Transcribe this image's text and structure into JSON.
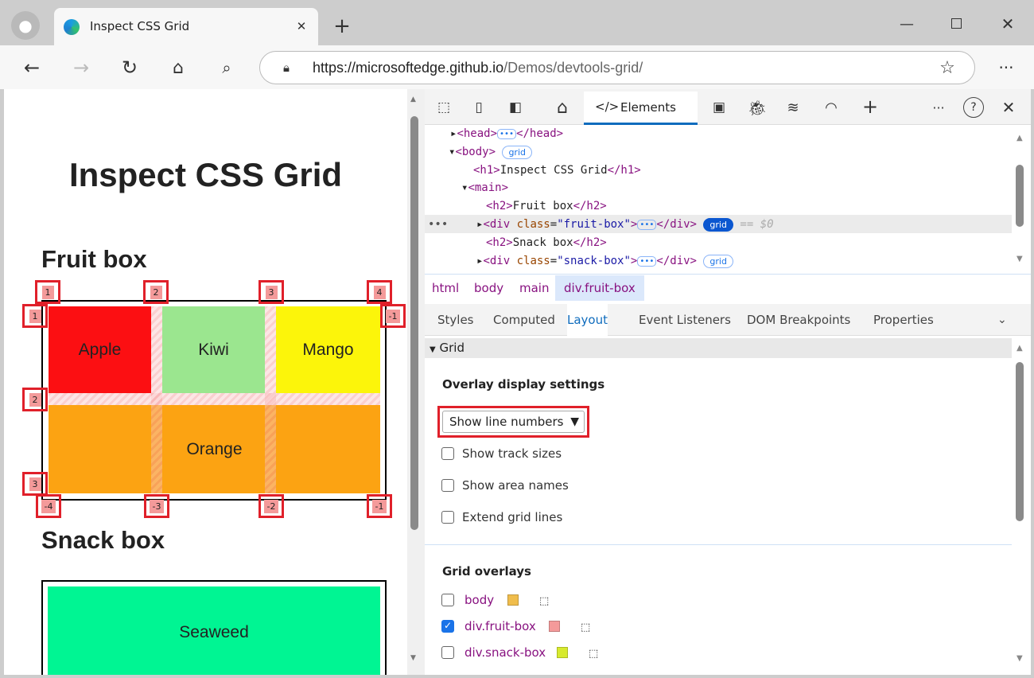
{
  "browser": {
    "tab_title": "Inspect CSS Grid",
    "url_host": "https://microsoftedge.github.io",
    "url_path": "/Demos/devtools-grid/",
    "new_tab": "+",
    "close_tab": "✕"
  },
  "page": {
    "h1": "Inspect CSS Grid",
    "fruit_heading": "Fruit box",
    "snack_heading": "Snack box",
    "fruit_cells": [
      "Apple",
      "Kiwi",
      "Mango",
      "Orange"
    ],
    "fruit_colors": [
      "#fc0f12",
      "#9be68f",
      "#fcf50a",
      "#fca312"
    ],
    "snack_cells": [
      "Seaweed"
    ],
    "snack_color": "#00f593",
    "line_numbers": {
      "top": [
        "1",
        "2",
        "3",
        "4"
      ],
      "left": [
        "1",
        "2",
        "3"
      ],
      "right": [
        "-1"
      ],
      "bottom": [
        "-4",
        "-3",
        "-2",
        "-1"
      ]
    }
  },
  "devtools": {
    "elements_tab": "Elements",
    "dom": {
      "head_open": "<head>",
      "head_close": "</head>",
      "body_open": "<body>",
      "h1_open": "<h1>",
      "h1_text": "Inspect CSS Grid",
      "h1_close": "</h1>",
      "main_open": "<main>",
      "h2_open": "<h2>",
      "h2_fruit": "Fruit box",
      "h2_close": "</h2>",
      "div_open": "<div ",
      "class_attr": "class",
      "fruit_val": "\"fruit-box\"",
      "snack_val": "\"snack-box\"",
      "gt": ">",
      "div_close": "</div>",
      "h2_snack": "Snack box",
      "grid_badge": "grid",
      "selected_marker": "== $0",
      "ellipsis": "•••"
    },
    "breadcrumbs": [
      "html",
      "body",
      "main",
      "div.fruit-box"
    ],
    "panel_tabs": [
      "Styles",
      "Computed",
      "Layout",
      "Event Listeners",
      "DOM Breakpoints",
      "Properties"
    ],
    "active_panel_tab": "Layout",
    "grid_section": "Grid",
    "overlay_settings_title": "Overlay display settings",
    "overlay_select": "Show line numbers",
    "options": [
      {
        "label": "Show track sizes",
        "checked": false
      },
      {
        "label": "Show area names",
        "checked": false
      },
      {
        "label": "Extend grid lines",
        "checked": false
      }
    ],
    "grid_overlays_title": "Grid overlays",
    "overlays": [
      {
        "label": "body",
        "checked": false,
        "color": "#f0bd4c"
      },
      {
        "label": "div.fruit-box",
        "checked": true,
        "color": "#f49a9a"
      },
      {
        "label": "div.snack-box",
        "checked": false,
        "color": "#d7ea2e"
      }
    ]
  }
}
